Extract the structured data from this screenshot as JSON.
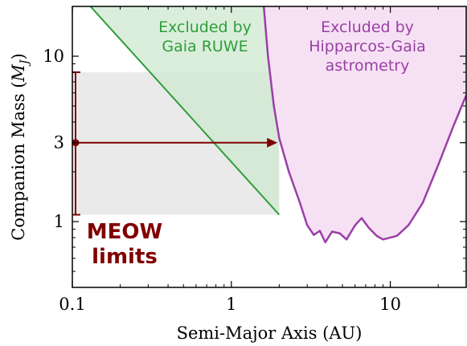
{
  "chart_data": {
    "type": "area",
    "xlabel": "Semi-Major Axis (AU)",
    "ylabel": "Companion Mass (",
    "ylabel_symbol_main": "M",
    "ylabel_symbol_sub": "J",
    "ylabel_close": ")",
    "x_scale": "log",
    "y_scale": "log",
    "xlim": [
      0.1,
      30
    ],
    "ylim": [
      0.4,
      20
    ],
    "x_ticks": [
      {
        "value": 0.1,
        "label": "0.1"
      },
      {
        "value": 1,
        "label": "1"
      },
      {
        "value": 10,
        "label": "10"
      }
    ],
    "y_ticks": [
      {
        "value": 1,
        "label": "1"
      },
      {
        "value": 3,
        "label": "3"
      },
      {
        "value": 10,
        "label": "10"
      }
    ],
    "colors": {
      "gaia": "#2e9e3a",
      "gaia_fill": "#cfe8cf",
      "hg": "#9a3fa6",
      "hg_fill": "#f6e1f4",
      "meow": "#800000",
      "meow_box": "#d9d9d9"
    },
    "meow_box": {
      "a_min": 0.1,
      "a_max": 2.0,
      "m_min": 1.1,
      "m_max": 8.0
    },
    "gaia_line": [
      [
        0.13,
        20
      ],
      [
        2.0,
        1.1
      ]
    ],
    "hg_boundary": [
      [
        1.6,
        20
      ],
      [
        1.7,
        10
      ],
      [
        1.85,
        5
      ],
      [
        2.0,
        3.2
      ],
      [
        2.3,
        2.0
      ],
      [
        2.7,
        1.3
      ],
      [
        3.0,
        0.95
      ],
      [
        3.3,
        0.83
      ],
      [
        3.6,
        0.88
      ],
      [
        3.9,
        0.75
      ],
      [
        4.3,
        0.87
      ],
      [
        4.8,
        0.85
      ],
      [
        5.3,
        0.78
      ],
      [
        6.0,
        0.95
      ],
      [
        6.6,
        1.05
      ],
      [
        7.3,
        0.92
      ],
      [
        8.2,
        0.82
      ],
      [
        9.0,
        0.78
      ],
      [
        11,
        0.82
      ],
      [
        13,
        0.95
      ],
      [
        16,
        1.3
      ],
      [
        20,
        2.2
      ],
      [
        25,
        3.8
      ],
      [
        30,
        5.8
      ]
    ],
    "meow_point": {
      "a": 0.1,
      "m": 3.0,
      "m_low": 1.1,
      "m_high": 8.0,
      "arrow_to": 1.95
    },
    "annotations": {
      "gaia_text": [
        "Excluded by",
        "Gaia RUWE"
      ],
      "hg_text": [
        "Excluded by",
        "Hipparcos-Gaia",
        "astrometry"
      ],
      "meow_text": [
        "MEOW",
        "limits"
      ]
    }
  }
}
